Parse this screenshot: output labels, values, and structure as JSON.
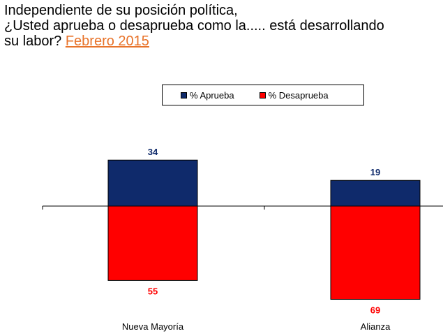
{
  "title": {
    "line1": "Independiente de su posición política,",
    "line2": "¿Usted aprueba o desaprueba como la..... está desarrollando",
    "line3_prefix": "su labor? ",
    "line3_highlight": "Febrero 2015"
  },
  "colors": {
    "aprueba": "#0f2a6b",
    "desaprueba": "#ff0000",
    "highlight": "#e8732a"
  },
  "chart_data": {
    "type": "bar",
    "categories": [
      "Nueva Mayoría",
      "Alianza"
    ],
    "series": [
      {
        "name": "% Aprueba",
        "values": [
          34,
          19
        ],
        "direction": "up",
        "color": "#0f2a6b"
      },
      {
        "name": "% Desaprueba",
        "values": [
          55,
          69
        ],
        "direction": "down",
        "color": "#ff0000"
      }
    ],
    "legend_position": "top-center",
    "grid": false
  }
}
